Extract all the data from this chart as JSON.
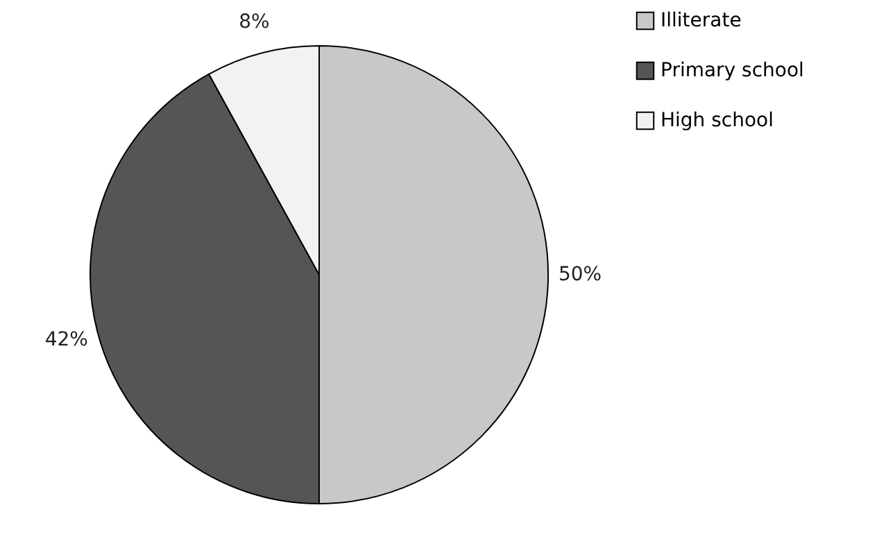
{
  "chart_data": {
    "type": "pie",
    "categories": [
      "Illiterate",
      "Primary school",
      "High school"
    ],
    "values": [
      50,
      42,
      8
    ],
    "value_labels": [
      "50%",
      "42%",
      "8%"
    ],
    "colors": [
      "#c8c8c8",
      "#555555",
      "#f2f2f2"
    ],
    "legend": "right"
  }
}
